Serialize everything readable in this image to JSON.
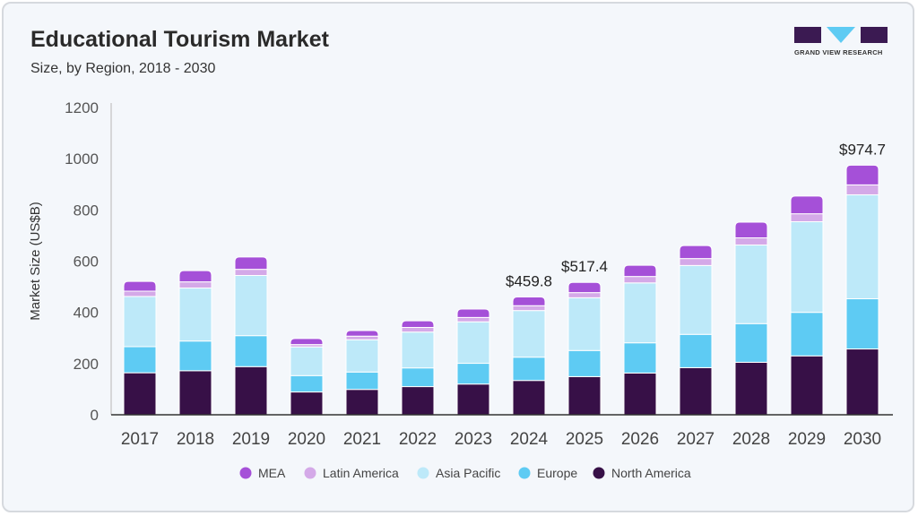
{
  "header": {
    "title": "Educational Tourism Market",
    "subtitle": "Size, by Region, 2018 - 2030"
  },
  "logo": {
    "text": "GRAND VIEW RESEARCH"
  },
  "chart_data": {
    "type": "bar",
    "stacked": true,
    "ylabel": "Market Size (US$B)",
    "xlabel": "",
    "ylim": [
      0,
      1200
    ],
    "yticks": [
      0,
      200,
      400,
      600,
      800,
      1000,
      1200
    ],
    "grid": false,
    "legend_position": "bottom",
    "categories": [
      "2017",
      "2018",
      "2019",
      "2020",
      "2021",
      "2022",
      "2023",
      "2024",
      "2025",
      "2026",
      "2027",
      "2028",
      "2029",
      "2030"
    ],
    "series": [
      {
        "name": "North America",
        "color": "#371047",
        "values": [
          164,
          172,
          188,
          89,
          99,
          110,
          120,
          134,
          149,
          163,
          184,
          205,
          230,
          257
        ]
      },
      {
        "name": "Europe",
        "color": "#5ecbf3",
        "values": [
          102,
          116,
          121,
          64,
          68,
          73,
          81,
          91,
          102,
          118,
          130,
          151,
          170,
          196
        ]
      },
      {
        "name": "Asia Pacific",
        "color": "#bde9f9",
        "values": [
          196,
          207,
          235,
          112,
          126,
          140,
          162,
          182,
          206,
          234,
          269,
          307,
          354,
          406
        ]
      },
      {
        "name": "Latin America",
        "color": "#d4a9e8",
        "values": [
          21,
          24,
          24,
          9,
          14,
          18,
          17,
          19,
          20,
          25,
          27,
          28,
          31,
          39
        ]
      },
      {
        "name": "MEA",
        "color": "#a550d8",
        "values": [
          38,
          44,
          48,
          24,
          22,
          26,
          33,
          34,
          40,
          44,
          51,
          61,
          69,
          77
        ]
      }
    ],
    "annotations": [
      {
        "category": "2024",
        "label": "$459.8"
      },
      {
        "category": "2025",
        "label": "$517.4"
      },
      {
        "category": "2030",
        "label": "$974.7"
      }
    ]
  }
}
